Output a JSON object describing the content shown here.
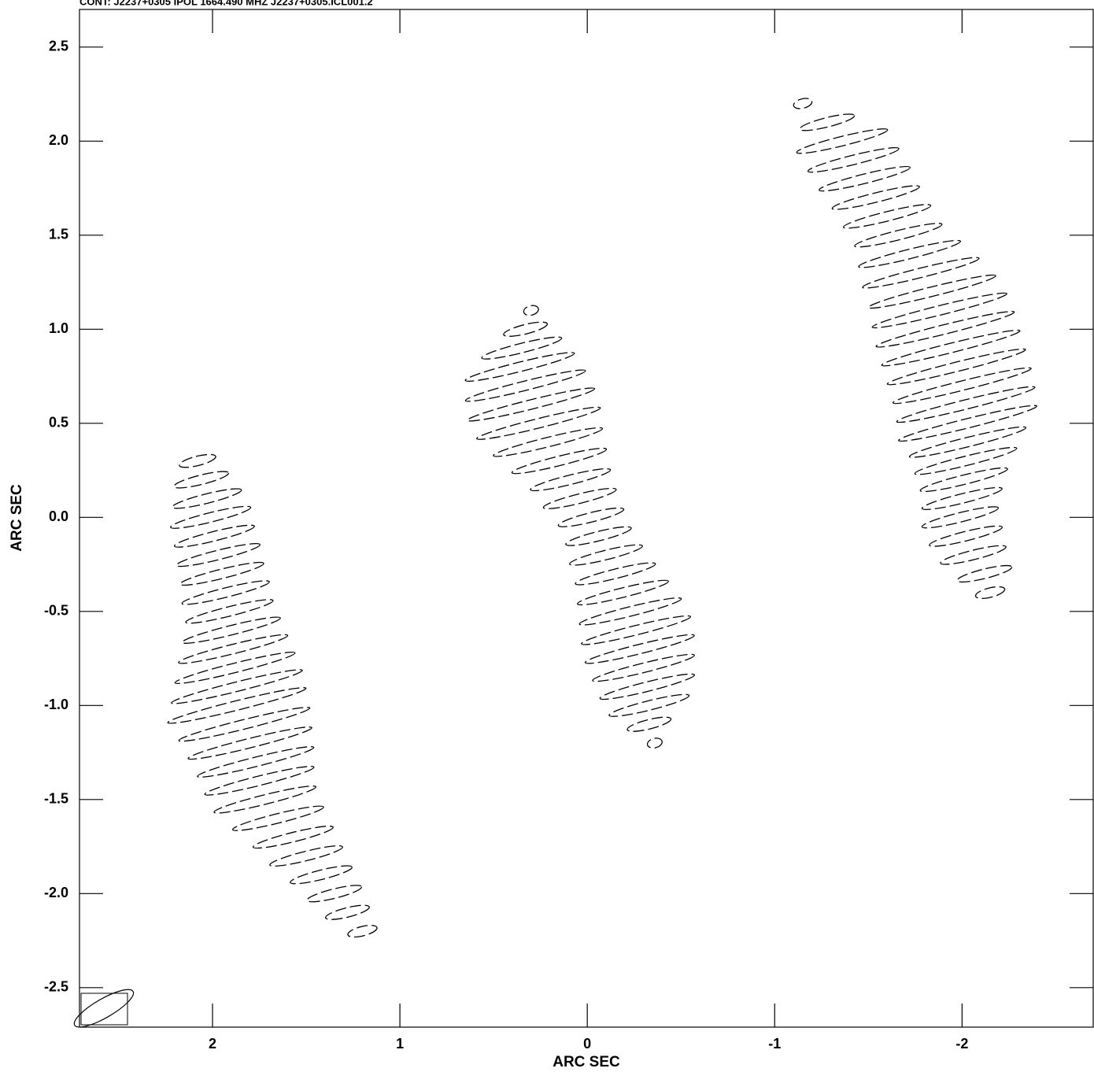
{
  "chart_data": {
    "type": "contour",
    "title": "CONT: J2237+0305 IPOL 1664.490 MHZ J2237+0305.ICL001.2",
    "xlabel": "ARC SEC",
    "ylabel": "ARC SEC",
    "xlim": [
      2.71,
      -2.7
    ],
    "ylim": [
      -2.71,
      2.7
    ],
    "xticks": [
      2,
      1,
      0,
      -1,
      -2
    ],
    "yticks": [
      2.5,
      {
        "value": 2.0,
        "label": "2.0"
      },
      1.5,
      {
        "value": 1.0,
        "label": "1.0"
      },
      0.5,
      {
        "value": 0.0,
        "label": "0.0"
      },
      -0.5,
      {
        "value": -1.0,
        "label": "-1.0"
      },
      -1.5,
      {
        "value": -2.0,
        "label": "-2.0"
      },
      -2.5
    ],
    "color": "#000000",
    "sources": [
      {
        "angle": 14,
        "minor": 0.025,
        "y": [
          0.3,
          0.2,
          0.1,
          0.0,
          -0.1,
          -0.2,
          -0.3,
          -0.4,
          -0.5,
          -0.6,
          -0.7,
          -0.8,
          -0.9,
          -1.0,
          -1.1,
          -1.2,
          -1.3,
          -1.4,
          -1.5,
          -1.6,
          -1.7,
          -1.8,
          -1.9,
          -2.0,
          -2.1,
          -2.2
        ],
        "x": [
          2.08,
          2.06,
          2.03,
          2.01,
          1.99,
          1.97,
          1.95,
          1.93,
          1.91,
          1.9,
          1.89,
          1.88,
          1.87,
          1.87,
          1.83,
          1.8,
          1.77,
          1.75,
          1.72,
          1.65,
          1.57,
          1.5,
          1.42,
          1.35,
          1.28,
          1.2
        ],
        "a": [
          0.1,
          0.15,
          0.19,
          0.22,
          0.22,
          0.23,
          0.23,
          0.24,
          0.24,
          0.27,
          0.3,
          0.33,
          0.36,
          0.38,
          0.36,
          0.34,
          0.32,
          0.3,
          0.28,
          0.25,
          0.22,
          0.2,
          0.17,
          0.15,
          0.12,
          0.08
        ]
      },
      {
        "angle": 14,
        "minor": 0.025,
        "y": [
          1.1,
          1.0,
          0.9,
          0.8,
          0.7,
          0.6,
          0.5,
          0.4,
          0.3,
          0.2,
          0.1,
          0.0,
          -0.1,
          -0.2,
          -0.3,
          -0.4,
          -0.5,
          -0.6,
          -0.7,
          -0.8,
          -0.9,
          -1.0,
          -1.1,
          -1.2
        ],
        "x": [
          0.3,
          0.33,
          0.35,
          0.36,
          0.33,
          0.3,
          0.26,
          0.21,
          0.15,
          0.09,
          0.04,
          -0.02,
          -0.06,
          -0.1,
          -0.15,
          -0.19,
          -0.23,
          -0.26,
          -0.28,
          -0.3,
          -0.32,
          -0.33,
          -0.33,
          -0.36
        ],
        "a": [
          0.04,
          0.12,
          0.22,
          0.3,
          0.33,
          0.35,
          0.34,
          0.3,
          0.26,
          0.22,
          0.2,
          0.18,
          0.18,
          0.2,
          0.22,
          0.25,
          0.28,
          0.3,
          0.3,
          0.28,
          0.26,
          0.22,
          0.12,
          0.04
        ]
      },
      {
        "angle": 14,
        "minor": 0.025,
        "y": [
          2.2,
          2.1,
          2.0,
          1.9,
          1.8,
          1.7,
          1.6,
          1.5,
          1.4,
          1.3,
          1.2,
          1.1,
          1.0,
          0.9,
          0.8,
          0.7,
          0.6,
          0.5,
          0.4,
          0.3,
          0.2,
          0.1,
          0.0,
          -0.1,
          -0.2,
          -0.3,
          -0.4
        ],
        "x": [
          -1.15,
          -1.28,
          -1.36,
          -1.42,
          -1.48,
          -1.54,
          -1.6,
          -1.66,
          -1.72,
          -1.78,
          -1.84,
          -1.88,
          -1.91,
          -1.94,
          -1.97,
          -2.0,
          -2.02,
          -2.03,
          -2.03,
          -2.02,
          -2.01,
          -2.0,
          -1.99,
          -2.02,
          -2.06,
          -2.12,
          -2.15
        ],
        "a": [
          0.05,
          0.15,
          0.25,
          0.25,
          0.25,
          0.24,
          0.24,
          0.24,
          0.28,
          0.32,
          0.35,
          0.37,
          0.38,
          0.38,
          0.38,
          0.38,
          0.38,
          0.38,
          0.32,
          0.28,
          0.24,
          0.22,
          0.21,
          0.2,
          0.18,
          0.15,
          0.08
        ]
      }
    ],
    "beam": {
      "x": 2.58,
      "y": -2.61,
      "a": 0.09,
      "b": 0.025,
      "angle": 30
    }
  }
}
